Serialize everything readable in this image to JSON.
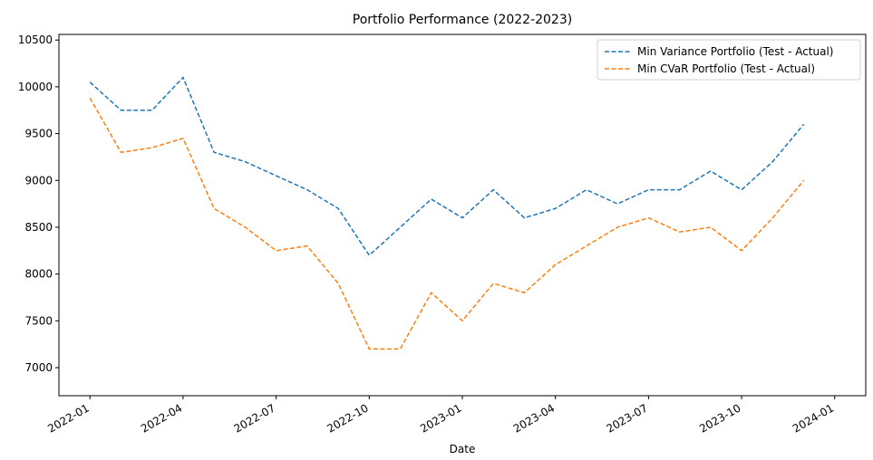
{
  "chart_data": {
    "type": "line",
    "title": "Portfolio Performance (2022-2023)",
    "xlabel": "Date",
    "x": [
      "2022-01",
      "2022-02",
      "2022-03",
      "2022-04",
      "2022-05",
      "2022-06",
      "2022-07",
      "2022-08",
      "2022-09",
      "2022-10",
      "2022-11",
      "2022-12",
      "2023-01",
      "2023-02",
      "2023-03",
      "2023-04",
      "2023-05",
      "2023-06",
      "2023-07",
      "2023-08",
      "2023-09",
      "2023-10",
      "2023-11",
      "2023-12"
    ],
    "series": [
      {
        "name": "Min Variance Portfolio (Test - Actual)",
        "color": "#1f77b4",
        "values": [
          10050,
          9750,
          9750,
          10100,
          9300,
          9200,
          9050,
          8900,
          8700,
          8200,
          8500,
          8800,
          8600,
          8900,
          8600,
          8700,
          8900,
          8750,
          8900,
          8900,
          9100,
          8900,
          9200,
          9600
        ]
      },
      {
        "name": "Min CVaR Portfolio (Test - Actual)",
        "color": "#ff7f0e",
        "values": [
          9880,
          9300,
          9350,
          9450,
          8700,
          8500,
          8250,
          8300,
          7900,
          7200,
          7200,
          7800,
          7500,
          7900,
          7800,
          8100,
          8300,
          8500,
          8600,
          8450,
          8500,
          8250,
          8600,
          9000
        ]
      }
    ],
    "xlim": [
      "2021-12",
      "2024-02"
    ],
    "xticks": [
      "2022-01",
      "2022-04",
      "2022-07",
      "2022-10",
      "2023-01",
      "2023-04",
      "2023-07",
      "2023-10",
      "2024-01"
    ],
    "ylim": [
      6700,
      10560
    ],
    "yticks": [
      7000,
      7500,
      8000,
      8500,
      9000,
      9500,
      10000,
      10500
    ],
    "legend": "upper right",
    "dashed": true
  }
}
